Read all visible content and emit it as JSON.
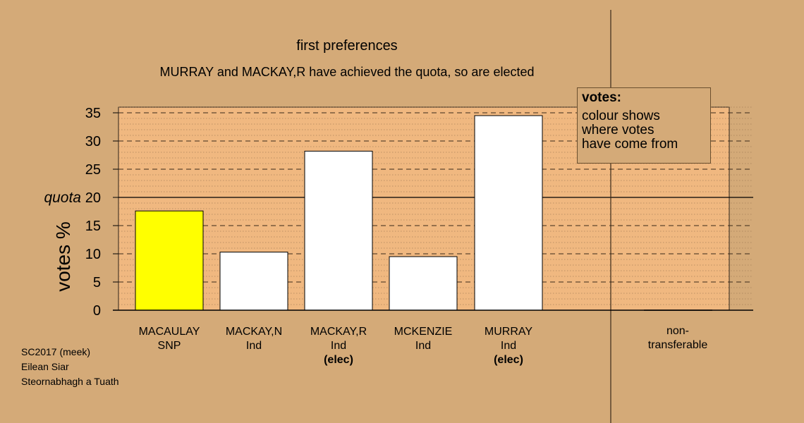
{
  "chart_data": {
    "type": "bar",
    "title": "first preferences",
    "subtitle": "MURRAY and MACKAY,R have achieved the quota, so are elected",
    "ylabel": "votes %",
    "quota_label": "quota",
    "quota": 20,
    "ylim": [
      0,
      36
    ],
    "yticks": [
      0,
      5,
      10,
      15,
      20,
      25,
      30,
      35
    ],
    "categories": [
      {
        "name": "MACAULAY",
        "party": "SNP",
        "status": "",
        "value": 17.6,
        "color": "#ffff00"
      },
      {
        "name": "MACKAY,N",
        "party": "Ind",
        "status": "",
        "value": 10.3,
        "color": "#ffffff"
      },
      {
        "name": "MACKAY,R",
        "party": "Ind",
        "status": "(elec)",
        "value": 28.2,
        "color": "#ffffff"
      },
      {
        "name": "MCKENZIE",
        "party": "Ind",
        "status": "",
        "value": 9.5,
        "color": "#ffffff"
      },
      {
        "name": "MURRAY",
        "party": "Ind",
        "status": "(elec)",
        "value": 34.5,
        "color": "#ffffff"
      }
    ],
    "nontransferable": {
      "label_line1": "non-",
      "label_line2": "transferable",
      "value": 0
    }
  },
  "legend": {
    "title": "votes:",
    "lines": [
      "colour shows",
      "where votes",
      "have come from"
    ]
  },
  "credit": {
    "line1": "SC2017 (meek)",
    "line2": "Eilean Siar",
    "line3": "Steornabhagh a Tuath"
  },
  "colors": {
    "background": "#d4aa78",
    "plot_area": "#f0b880",
    "accent": "#ffff00"
  }
}
